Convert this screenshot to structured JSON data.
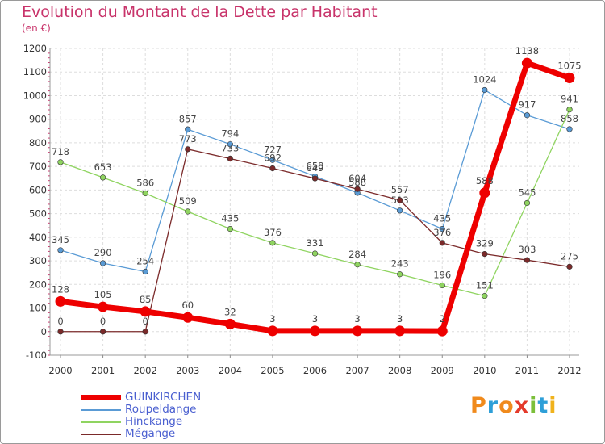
{
  "title": "Evolution du Montant de la Dette par Habitant",
  "subtitle": "(en €)",
  "logo": {
    "letters": [
      "P",
      "r",
      "o",
      "x",
      "i",
      "t",
      "i"
    ],
    "colors": [
      "#f08a1c",
      "#2e9fd8",
      "#f08a1c",
      "#e43a2b",
      "#7bbf3a",
      "#2e9fd8",
      "#f0b21c"
    ]
  },
  "chart_data": {
    "type": "line",
    "title": "Evolution du Montant de la Dette par Habitant",
    "subtitle": "(en €)",
    "xlabel": "",
    "ylabel": "",
    "ylim": [
      -100,
      1200
    ],
    "yticks": [
      -100,
      0,
      100,
      200,
      300,
      400,
      500,
      600,
      700,
      800,
      900,
      1000,
      1100,
      1200
    ],
    "x": [
      "2000",
      "2001",
      "2002",
      "2003",
      "2004",
      "2005",
      "2006",
      "2007",
      "2008",
      "2009",
      "2010",
      "2011",
      "2012"
    ],
    "grid": true,
    "legend_position": "bottom-left",
    "series": [
      {
        "name": "GUINKIRCHEN",
        "color": "#ee0000",
        "bold": true,
        "values": [
          128,
          105,
          85,
          60,
          32,
          3,
          3,
          3,
          3,
          2,
          588,
          1138,
          1075
        ]
      },
      {
        "name": "Roupeldange",
        "color": "#5a9bd5",
        "bold": false,
        "values": [
          345,
          290,
          254,
          857,
          794,
          727,
          658,
          588,
          513,
          435,
          1024,
          917,
          858
        ]
      },
      {
        "name": "Hinckange",
        "color": "#8fd460",
        "bold": false,
        "values": [
          718,
          653,
          586,
          509,
          435,
          376,
          331,
          284,
          243,
          196,
          151,
          545,
          941
        ]
      },
      {
        "name": "Mégange",
        "color": "#7b2a2a",
        "bold": false,
        "values": [
          0,
          0,
          0,
          773,
          733,
          692,
          649,
          604,
          557,
          376,
          329,
          303,
          275
        ]
      }
    ]
  }
}
